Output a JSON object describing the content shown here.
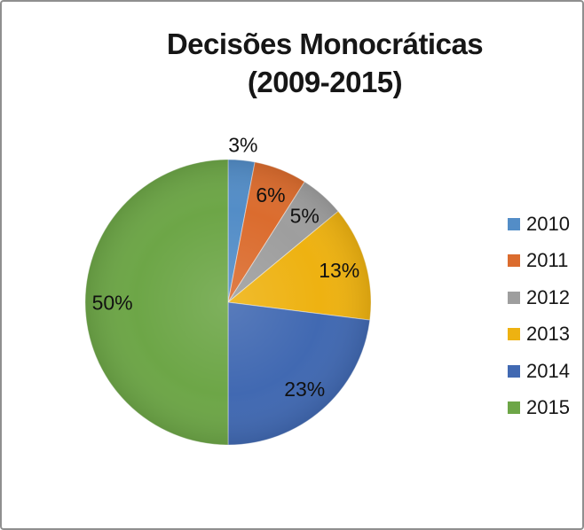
{
  "frame": {
    "border_color": "#8f8f8f",
    "background_color": "#ffffff"
  },
  "chart_data": {
    "type": "pie",
    "title_lines": [
      "Decisões Monocráticas",
      "(2009-2015)"
    ],
    "categories": [
      "2010",
      "2011",
      "2012",
      "2013",
      "2014",
      "2015"
    ],
    "values": [
      3,
      6,
      5,
      13,
      23,
      50
    ],
    "percent_labels": [
      "3%",
      "6%",
      "5%",
      "13%",
      "23%",
      "50%"
    ],
    "colors": [
      "#538DC7",
      "#DB6C2E",
      "#9E9E9E",
      "#EEB211",
      "#4169B2",
      "#6DA647"
    ],
    "label_placement": [
      "outside",
      "inside",
      "inside",
      "inside",
      "inside",
      "inside"
    ],
    "start_angle": "12 o'clock, clockwise",
    "legend_position": "right",
    "label_color": "#111111"
  }
}
